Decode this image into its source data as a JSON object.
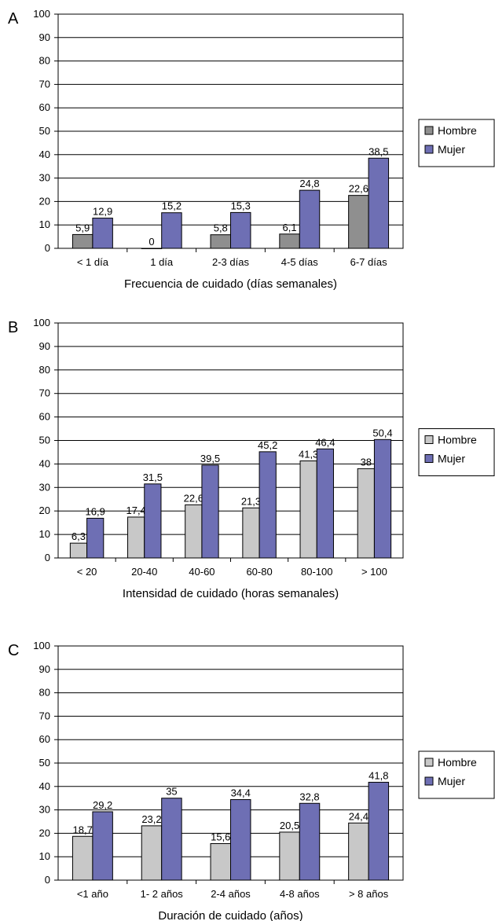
{
  "chart_data": [
    {
      "type": "bar",
      "panel": "A",
      "xlabel": "Frecuencia de cuidado (días semanales)",
      "ylim": [
        0,
        100
      ],
      "yticks": [
        "0",
        "10",
        "20",
        "30",
        "40",
        "50",
        "60",
        "70",
        "80",
        "90",
        "100"
      ],
      "grid": true,
      "legend_position": "right",
      "categories": [
        "< 1 día",
        "1 día",
        "2-3 días",
        "4-5 días",
        "6-7 días"
      ],
      "series": [
        {
          "name": "Hombre",
          "color": "#8f8f8f",
          "values": [
            5.9,
            0,
            5.8,
            6.1,
            22.6
          ],
          "labels": [
            "5,9",
            "0",
            "5,8",
            "6,1",
            "22,6"
          ]
        },
        {
          "name": "Mujer",
          "color": "#6e6fb4",
          "values": [
            12.9,
            15.2,
            15.3,
            24.8,
            38.5
          ],
          "labels": [
            "12,9",
            "15,2",
            "15,3",
            "24,8",
            "38,5"
          ]
        }
      ]
    },
    {
      "type": "bar",
      "panel": "B",
      "xlabel": "Intensidad de cuidado (horas semanales)",
      "ylim": [
        0,
        100
      ],
      "yticks": [
        "0",
        "10",
        "20",
        "30",
        "40",
        "50",
        "60",
        "70",
        "80",
        "90",
        "100"
      ],
      "grid": true,
      "legend_position": "right",
      "categories": [
        "< 20",
        "20-40",
        "40-60",
        "60-80",
        "80-100",
        "> 100"
      ],
      "series": [
        {
          "name": "Hombre",
          "color": "#c8c8c8",
          "values": [
            6.3,
            17.4,
            22.6,
            21.3,
            41.3,
            38
          ],
          "labels": [
            "6,3",
            "17,4",
            "22,6",
            "21,3",
            "41,3",
            "38"
          ]
        },
        {
          "name": "Mujer",
          "color": "#6e6fb4",
          "values": [
            16.9,
            31.5,
            39.5,
            45.2,
            46.4,
            50.4
          ],
          "labels": [
            "16,9",
            "31,5",
            "39,5",
            "45,2",
            "46,4",
            "50,4"
          ]
        }
      ]
    },
    {
      "type": "bar",
      "panel": "C",
      "xlabel": "Duración de cuidado (años)",
      "ylim": [
        0,
        100
      ],
      "yticks": [
        "0",
        "10",
        "20",
        "30",
        "40",
        "50",
        "60",
        "70",
        "80",
        "90",
        "100"
      ],
      "grid": true,
      "legend_position": "right",
      "categories": [
        "<1 año",
        "1- 2 años",
        "2-4 años",
        "4-8 años",
        "> 8 años"
      ],
      "series": [
        {
          "name": "Hombre",
          "color": "#c8c8c8",
          "values": [
            18.7,
            23.2,
            15.6,
            20.5,
            24.4
          ],
          "labels": [
            "18,7",
            "23,2",
            "15,6",
            "20,5",
            "24,4"
          ]
        },
        {
          "name": "Mujer",
          "color": "#6e6fb4",
          "values": [
            29.2,
            35,
            34.4,
            32.8,
            41.8
          ],
          "labels": [
            "29,2",
            "35",
            "34,4",
            "32,8",
            "41,8"
          ]
        }
      ]
    }
  ]
}
